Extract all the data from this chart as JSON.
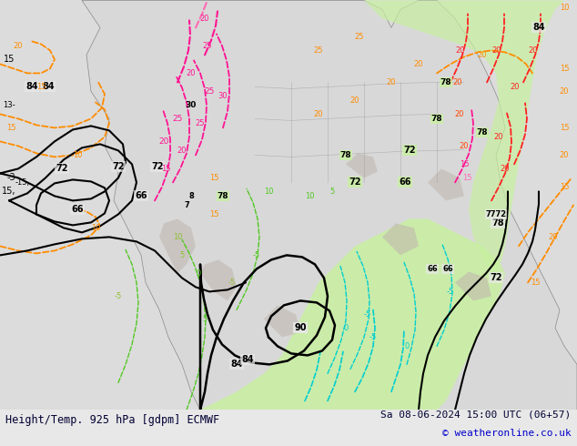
{
  "title_left": "Height/Temp. 925 hPa [gdpm] ECMWF",
  "title_right": "Sa 08-06-2024 15:00 UTC (06+57)",
  "copyright": "© weatheronline.co.uk",
  "bg_color": "#e8e8e8",
  "map_bg_color": "#d8d8d8",
  "fig_width": 6.34,
  "fig_height": 4.9,
  "dpi": 100,
  "bottom_text_color": "#000033",
  "copyright_color": "#0000cc",
  "font_size_title": 8.5,
  "font_size_copyright": 8.0,
  "green_fill_color": "#c8f0a0",
  "gray_fill_color": "#c0b8b0",
  "ocean_color": "#dcdcdc",
  "land_color": "#e0e0e0"
}
